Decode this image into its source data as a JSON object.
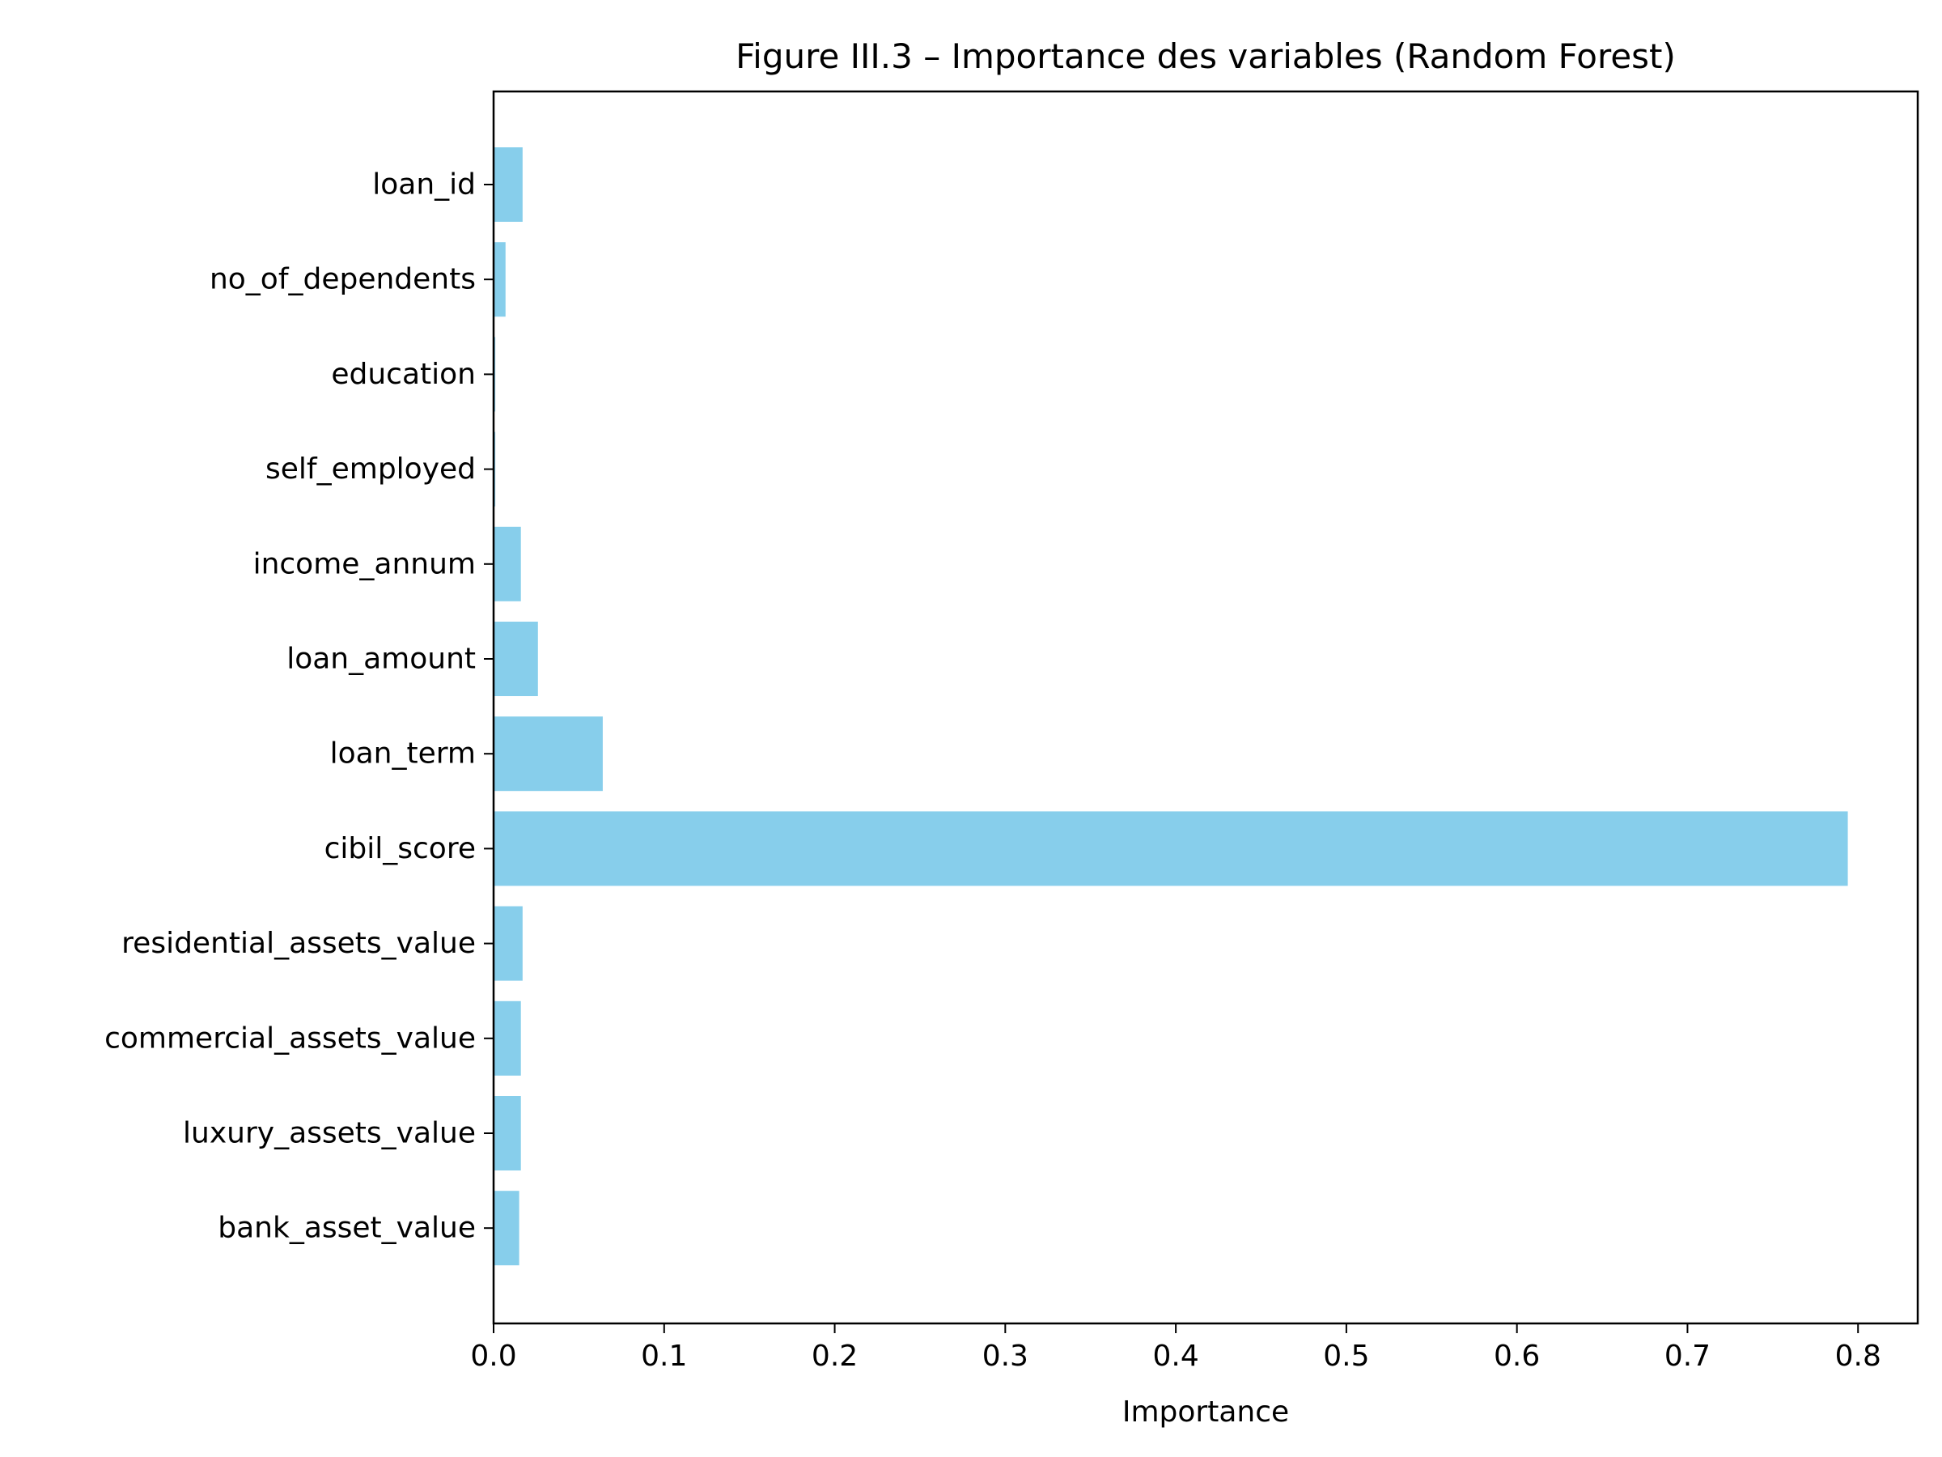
{
  "chart_data": {
    "type": "bar",
    "orientation": "horizontal",
    "title": "Figure III.3 – Importance des variables (Random Forest)",
    "xlabel": "Importance",
    "ylabel": "",
    "xlim": [
      0,
      0.835
    ],
    "xticks": [
      0.0,
      0.1,
      0.2,
      0.3,
      0.4,
      0.5,
      0.6,
      0.7,
      0.8
    ],
    "xtick_labels": [
      "0.0",
      "0.1",
      "0.2",
      "0.3",
      "0.4",
      "0.5",
      "0.6",
      "0.7",
      "0.8"
    ],
    "categories": [
      "loan_id",
      "no_of_dependents",
      "education",
      "self_employed",
      "income_annum",
      "loan_amount",
      "loan_term",
      "cibil_score",
      "residential_assets_value",
      "commercial_assets_value",
      "luxury_assets_value",
      "bank_asset_value"
    ],
    "values": [
      0.017,
      0.007,
      0.001,
      0.001,
      0.016,
      0.026,
      0.064,
      0.794,
      0.017,
      0.016,
      0.016,
      0.015
    ],
    "bar_color": "#87CEEB",
    "grid": false,
    "legend": "none"
  }
}
